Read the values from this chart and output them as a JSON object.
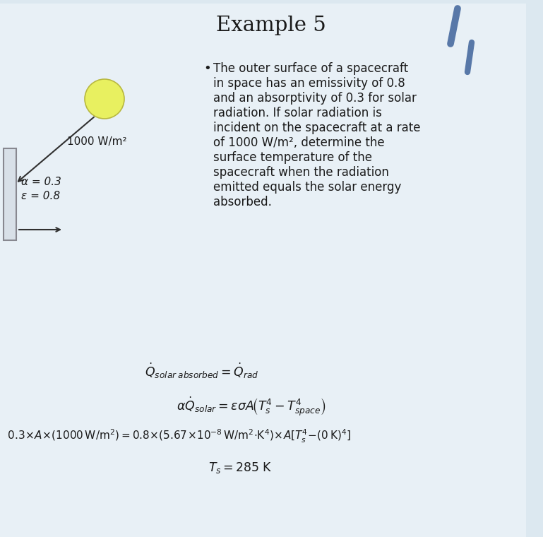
{
  "title": "Example 5",
  "bg_color": "#dce8f0",
  "panel_color": "#e8f0f6",
  "bullet_text": [
    "The outer surface of a spacecraft",
    "in space has an emissivity of 0.8",
    "and an absorptivity of 0.3 for solar",
    "radiation. If solar radiation is",
    "incident on the spacecraft at a rate",
    "of 1000 W/m², determine the",
    "surface temperature of the",
    "spacecraft when the radiation",
    "emitted equals the solar energy",
    "absorbed."
  ],
  "label_flux": "1000 W/m²",
  "label_alpha": "α = 0.3",
  "label_epsilon": "ε = 0.8",
  "sun_color": "#e8f060",
  "sun_outline": "#b8b840",
  "spacecraft_fill": "#d8e0e8",
  "spacecraft_edge": "#888890",
  "arrow_color": "#303030",
  "deco_color": "#5878a8",
  "text_color": "#1a1a1a"
}
